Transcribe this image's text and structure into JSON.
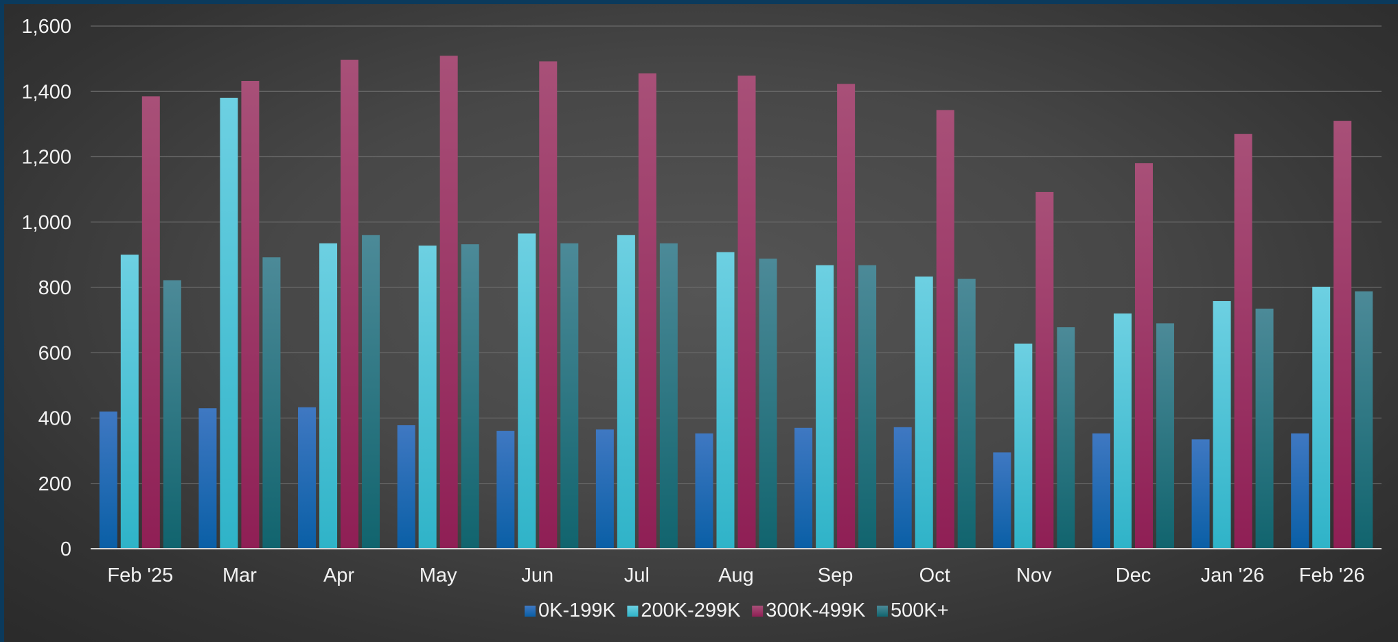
{
  "chart_data": {
    "type": "bar",
    "title": "",
    "xlabel": "",
    "ylabel": "",
    "ylim": [
      0,
      1600
    ],
    "yticks": [
      0,
      200,
      400,
      600,
      800,
      1000,
      1200,
      1400,
      1600
    ],
    "ytick_labels": [
      "0",
      "200",
      "400",
      "600",
      "800",
      "1,000",
      "1,200",
      "1,400",
      "1,600"
    ],
    "grid": true,
    "legend_position": "bottom",
    "categories": [
      "Feb '25",
      "Mar",
      "Apr",
      "May",
      "Jun",
      "Jul",
      "Aug",
      "Sep",
      "Oct",
      "Nov",
      "Dec",
      "Jan '26",
      "Feb '26"
    ],
    "series": [
      {
        "name": "0K-199K",
        "color": "#2266b0",
        "values": [
          420,
          430,
          433,
          378,
          361,
          365,
          353,
          370,
          372,
          295,
          353,
          335,
          353
        ]
      },
      {
        "name": "200K-299K",
        "color": "#4cc4d8",
        "values": [
          900,
          1380,
          935,
          928,
          965,
          960,
          908,
          868,
          833,
          628,
          720,
          758,
          802
        ]
      },
      {
        "name": "300K-499K",
        "color": "#9c3060",
        "values": [
          1385,
          1432,
          1497,
          1509,
          1492,
          1455,
          1448,
          1423,
          1343,
          1092,
          1180,
          1270,
          1310
        ]
      },
      {
        "name": "500K+",
        "color": "#277a86",
        "values": [
          822,
          892,
          960,
          932,
          935,
          935,
          888,
          868,
          826,
          678,
          690,
          735,
          788
        ]
      }
    ]
  }
}
